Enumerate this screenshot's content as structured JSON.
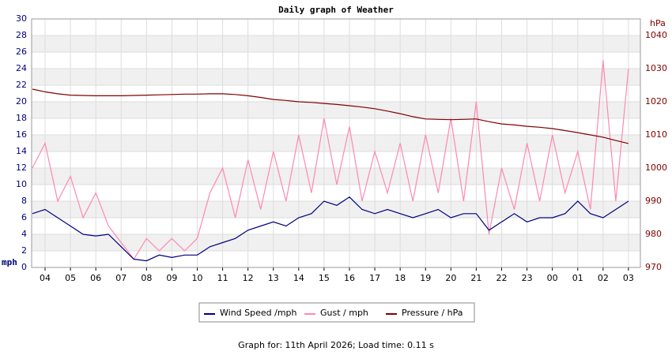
{
  "chart_data": {
    "type": "line",
    "title": "Daily graph of Weather",
    "y_label": "mph",
    "y2_label": "hPa",
    "footer": "Graph for: 11th April 2026; Load time: 0.11 s",
    "x": [
      3.5,
      4,
      4.5,
      5,
      5.5,
      6,
      6.5,
      7,
      7.5,
      8,
      8.5,
      9,
      9.5,
      10,
      10.5,
      11,
      11.5,
      12,
      12.5,
      13,
      13.5,
      14,
      14.5,
      15,
      15.5,
      16,
      16.5,
      17,
      17.5,
      18,
      18.5,
      19,
      19.5,
      20,
      20.5,
      21,
      21.5,
      22,
      22.5,
      23,
      23.5,
      24,
      24.5,
      25,
      25.5,
      26,
      26.5,
      27
    ],
    "xlim": [
      3.47,
      27.47
    ],
    "xticks": [
      {
        "value": 4,
        "label": "04"
      },
      {
        "value": 5,
        "label": "05"
      },
      {
        "value": 6,
        "label": "06"
      },
      {
        "value": 7,
        "label": "07"
      },
      {
        "value": 8,
        "label": "08"
      },
      {
        "value": 9,
        "label": "09"
      },
      10,
      11,
      12,
      13,
      14,
      15,
      16,
      17,
      18,
      19,
      20,
      21,
      22,
      23,
      {
        "value": 24,
        "label": "00"
      },
      {
        "value": 25,
        "label": "01"
      },
      {
        "value": 26,
        "label": "02"
      },
      {
        "value": 27,
        "label": "03"
      }
    ],
    "ylim": [
      0,
      30
    ],
    "yticks": [
      0,
      2,
      4,
      6,
      8,
      10,
      12,
      14,
      16,
      18,
      20,
      22,
      24,
      26,
      28,
      30
    ],
    "y2lim": [
      970,
      1045
    ],
    "y2ticks": [
      970,
      980,
      990,
      1000,
      1010,
      1020,
      1030,
      1040
    ],
    "grid": true,
    "series": [
      {
        "name": "Wind Speed /mph",
        "color": "#000080",
        "values": [
          6.5,
          7,
          6,
          5,
          4,
          3.8,
          4,
          2.5,
          1,
          0.8,
          1.5,
          1.2,
          1.5,
          1.5,
          2.5,
          3,
          3.5,
          4.5,
          5,
          5.5,
          5,
          6,
          6.5,
          8,
          7.5,
          8.5,
          7,
          6.5,
          7,
          6.5,
          6,
          6.5,
          7,
          6,
          6.5,
          6.5,
          4.5,
          5.5,
          6.5,
          5.5,
          6,
          6,
          6.5,
          8,
          6.5,
          6,
          7,
          8
        ]
      },
      {
        "name": "Gust / mph",
        "color": "#ff88b0",
        "values": [
          12,
          15,
          8,
          11,
          6,
          9,
          5,
          3,
          1,
          3.5,
          2,
          3.5,
          2,
          3.5,
          9,
          12,
          6,
          13,
          7,
          14,
          8,
          16,
          9,
          18,
          10,
          17,
          8,
          14,
          9,
          15,
          8,
          16,
          9,
          18,
          8,
          20,
          4,
          12,
          7,
          15,
          8,
          16,
          9,
          14,
          7,
          25,
          8,
          24
        ]
      },
      {
        "name": "Pressure / hPa",
        "color": "#800000",
        "axis": "y2",
        "values": [
          1023.8,
          1023,
          1022.4,
          1022,
          1021.9,
          1021.8,
          1021.8,
          1021.8,
          1021.9,
          1022,
          1022.1,
          1022.2,
          1022.3,
          1022.3,
          1022.4,
          1022.4,
          1022.2,
          1021.8,
          1021.3,
          1020.7,
          1020.4,
          1020,
          1019.8,
          1019.5,
          1019.2,
          1018.8,
          1018.4,
          1017.9,
          1017.2,
          1016.4,
          1015.5,
          1014.8,
          1014.7,
          1014.6,
          1014.7,
          1014.8,
          1014,
          1013.3,
          1013,
          1012.6,
          1012.3,
          1011.9,
          1011.3,
          1010.7,
          1010,
          1009.3,
          1008.3,
          1007.4
        ]
      }
    ]
  }
}
